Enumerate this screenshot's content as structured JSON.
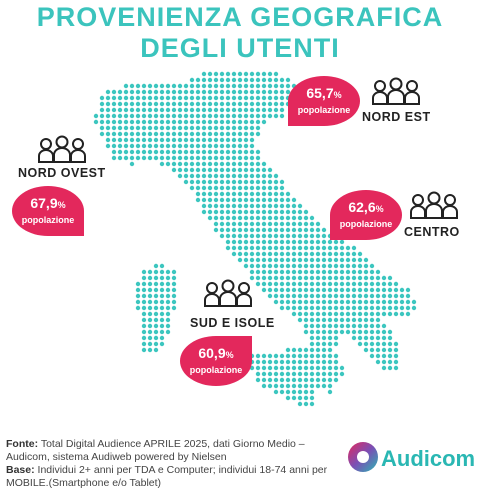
{
  "header": {
    "title_line_1": "PROVENIENZA GEOGRAFICA",
    "title_line_2": "DEGLI UTENTI"
  },
  "regions": [
    {
      "name": "NORD EST",
      "value": "65,7",
      "unit": "%",
      "label": "popolazione"
    },
    {
      "name": "NORD OVEST",
      "value": "67,9",
      "unit": "%",
      "label": "popolazione"
    },
    {
      "name": "CENTRO",
      "value": "62,6",
      "unit": "%",
      "label": "popolazione"
    },
    {
      "name": "SUD E ISOLE",
      "value": "60,9",
      "unit": "%",
      "label": "popolazione"
    }
  ],
  "footer": {
    "source_label": "Fonte:",
    "source_text": "Total Digital Audience APRILE 2025, dati Giorno Medio – Audicom, sistema Audiweb powered by Nielsen",
    "base_label": "Base:",
    "base_text": "Individui 2+ anni per TDA e Computer; individui 18-74 anni per MOBILE.(Smartphone e/o Tablet)"
  },
  "logo": "Audicom"
}
